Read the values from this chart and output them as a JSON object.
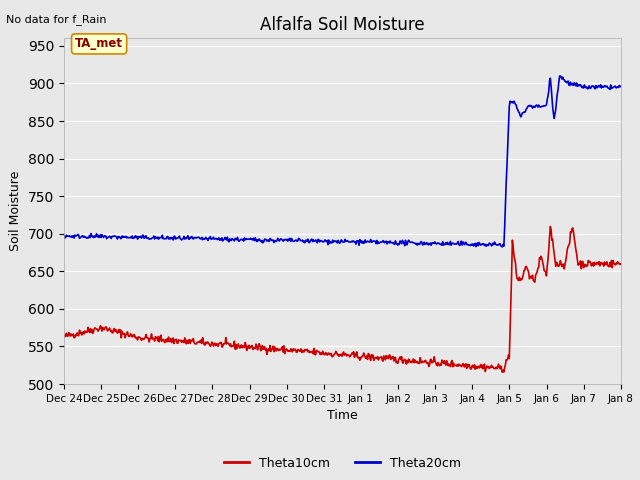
{
  "title": "Alfalfa Soil Moisture",
  "top_left_text": "No data for f_Rain",
  "xlabel": "Time",
  "ylabel": "Soil Moisture",
  "ylim": [
    500,
    960
  ],
  "yticks": [
    500,
    550,
    600,
    650,
    700,
    750,
    800,
    850,
    900,
    950
  ],
  "xtick_labels": [
    "Dec 24",
    "Dec 25",
    "Dec 26",
    "Dec 27",
    "Dec 28",
    "Dec 29",
    "Dec 30",
    "Dec 31",
    "Jan 1",
    "Jan 2",
    "Jan 3",
    "Jan 4",
    "Jan 5",
    "Jan 6",
    "Jan 7",
    "Jan 8"
  ],
  "fig_bg_color": "#e8e8e8",
  "plot_bg_color": "#e8e8e8",
  "grid_color": "#ffffff",
  "annotation_box": {
    "text": "TA_met",
    "facecolor": "#ffffcc",
    "edgecolor": "#cc8800"
  },
  "legend": [
    {
      "label": "Theta10cm",
      "color": "#cc0000"
    },
    {
      "label": "Theta20cm",
      "color": "#0000cc"
    }
  ],
  "line_width": 1.2
}
